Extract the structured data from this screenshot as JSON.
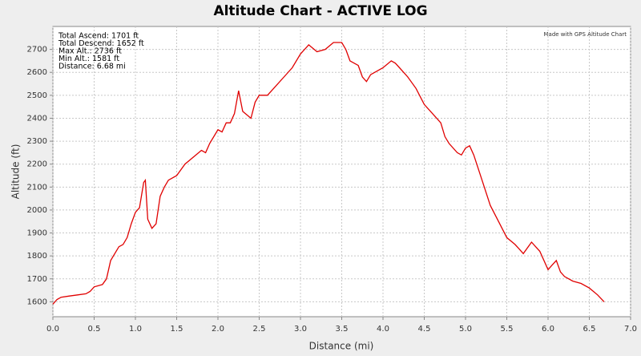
{
  "chart_data": {
    "type": "line",
    "title": "Altitude Chart - ACTIVE LOG",
    "x_label": "Distance (mi)",
    "y_label": "Altitude (ft)",
    "annotations": [
      "Total Ascend: 1701 ft",
      "Total Descend: 1652 ft",
      "Max Alt.: 2736 ft",
      "Min Alt.: 1581 ft",
      "Distance: 6.68 mi"
    ],
    "credit": "Made with GPS Altitude Chart",
    "x": [
      0.0,
      0.05,
      0.1,
      0.2,
      0.3,
      0.4,
      0.45,
      0.5,
      0.6,
      0.65,
      0.7,
      0.8,
      0.85,
      0.9,
      0.95,
      1.0,
      1.05,
      1.1,
      1.12,
      1.15,
      1.2,
      1.25,
      1.3,
      1.35,
      1.4,
      1.5,
      1.6,
      1.7,
      1.8,
      1.85,
      1.9,
      2.0,
      2.05,
      2.1,
      2.15,
      2.2,
      2.25,
      2.3,
      2.4,
      2.45,
      2.5,
      2.6,
      2.7,
      2.8,
      2.9,
      3.0,
      3.1,
      3.2,
      3.3,
      3.4,
      3.5,
      3.55,
      3.6,
      3.7,
      3.75,
      3.8,
      3.85,
      4.0,
      4.1,
      4.15,
      4.2,
      4.3,
      4.4,
      4.5,
      4.6,
      4.7,
      4.75,
      4.8,
      4.9,
      4.95,
      5.0,
      5.05,
      5.1,
      5.2,
      5.3,
      5.4,
      5.5,
      5.6,
      5.65,
      5.7,
      5.8,
      5.85,
      5.9,
      6.0,
      6.05,
      6.1,
      6.15,
      6.2,
      6.3,
      6.4,
      6.5,
      6.6,
      6.68
    ],
    "series": [
      {
        "name": "Altitude",
        "color": "#e00000",
        "values": [
          1590,
          1610,
          1620,
          1625,
          1630,
          1635,
          1645,
          1665,
          1675,
          1700,
          1780,
          1840,
          1850,
          1880,
          1940,
          1990,
          2010,
          2120,
          2130,
          1960,
          1920,
          1940,
          2060,
          2100,
          2130,
          2150,
          2200,
          2230,
          2260,
          2250,
          2290,
          2350,
          2340,
          2380,
          2380,
          2420,
          2520,
          2430,
          2400,
          2470,
          2500,
          2500,
          2540,
          2580,
          2620,
          2680,
          2720,
          2690,
          2700,
          2730,
          2730,
          2700,
          2650,
          2630,
          2580,
          2560,
          2590,
          2620,
          2650,
          2640,
          2620,
          2580,
          2530,
          2460,
          2420,
          2380,
          2320,
          2290,
          2250,
          2240,
          2270,
          2280,
          2240,
          2130,
          2020,
          1950,
          1880,
          1850,
          1830,
          1810,
          1860,
          1840,
          1820,
          1740,
          1760,
          1780,
          1730,
          1710,
          1690,
          1680,
          1660,
          1630,
          1600
        ]
      }
    ],
    "xlim": [
      0,
      7
    ],
    "ylim": [
      1535,
      2800
    ],
    "xticks": [
      {
        "value": 0,
        "label": "0.0"
      },
      0.5,
      {
        "value": 1,
        "label": "1.0"
      },
      1.5,
      {
        "value": 2,
        "label": "2.0"
      },
      2.5,
      {
        "value": 3,
        "label": "3.0"
      },
      3.5,
      {
        "value": 4,
        "label": "4.0"
      },
      4.5,
      {
        "value": 5,
        "label": "5.0"
      },
      5.5,
      {
        "value": 6,
        "label": "6.0"
      },
      6.5,
      {
        "value": 7,
        "label": "7.0"
      }
    ],
    "yticks": [
      1600,
      1700,
      1800,
      1900,
      2000,
      2100,
      2200,
      2300,
      2400,
      2500,
      2600,
      2700
    ],
    "grid": true
  }
}
